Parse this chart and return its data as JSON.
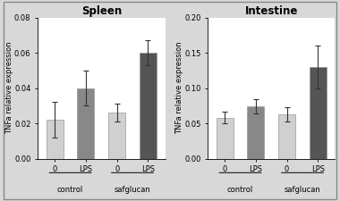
{
  "spleen": {
    "title": "Spleen",
    "values": [
      0.022,
      0.04,
      0.026,
      0.06
    ],
    "errors": [
      0.01,
      0.01,
      0.005,
      0.007
    ],
    "ylim": [
      0,
      0.08
    ],
    "yticks": [
      0.0,
      0.02,
      0.04,
      0.06,
      0.08
    ],
    "ylabel": "TNFa relative expression"
  },
  "intestine": {
    "title": "Intestine",
    "values": [
      0.058,
      0.074,
      0.063,
      0.13
    ],
    "errors": [
      0.008,
      0.01,
      0.01,
      0.03
    ],
    "ylim": [
      0,
      0.2
    ],
    "yticks": [
      0.0,
      0.05,
      0.1,
      0.15,
      0.2
    ],
    "ylabel": "TNFa relative expression"
  },
  "x_labels": [
    "0",
    "LPS",
    "0",
    "LPS"
  ],
  "group_labels": [
    "control",
    "safglucan"
  ],
  "bar_colors": [
    "#d0d0d0",
    "#888888",
    "#d0d0d0",
    "#555555"
  ],
  "ax_facecolor": "#ffffff",
  "fig_facecolor": "#d8d8d8",
  "title_fontsize": 8.5,
  "label_fontsize": 6.0,
  "tick_fontsize": 6.0,
  "bar_width": 0.55,
  "group_label_fontsize": 6.0
}
